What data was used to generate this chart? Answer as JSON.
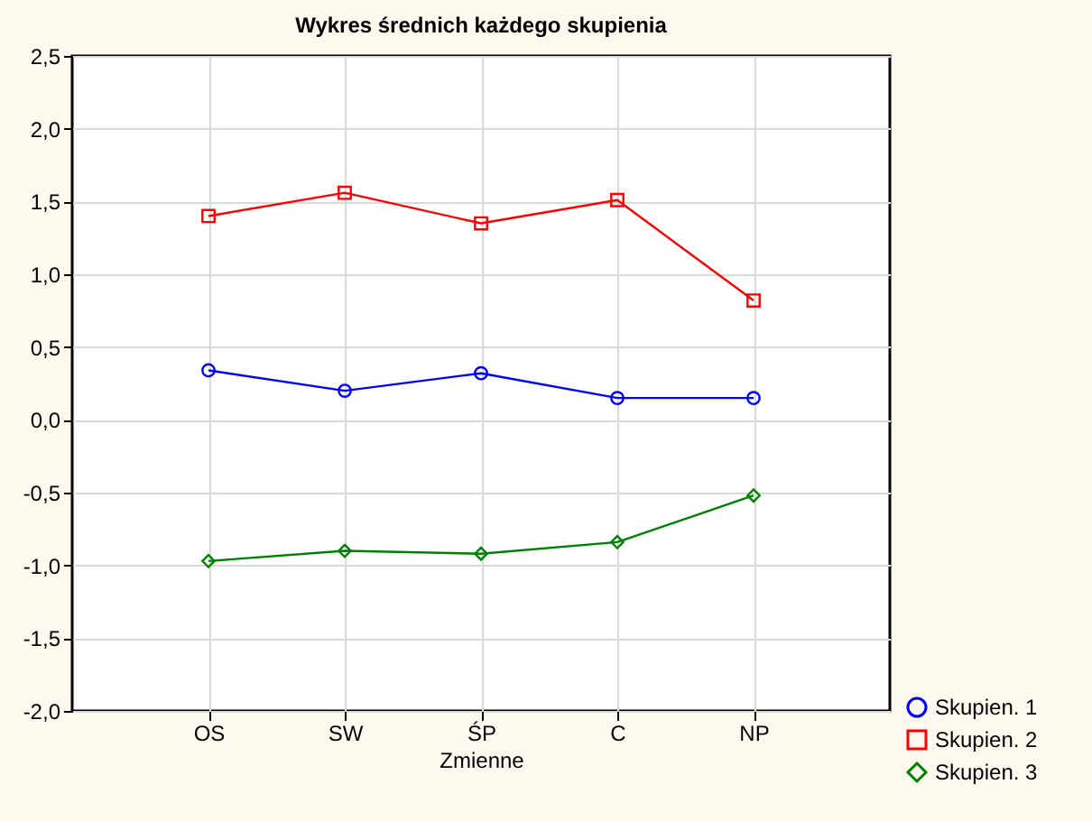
{
  "chart_data": {
    "type": "line",
    "title": "Wykres średnich każdego skupienia",
    "xlabel": "Zmienne",
    "categories": [
      "OS",
      "SW",
      "ŚP",
      "C",
      "NP"
    ],
    "series": [
      {
        "name": "Skupien. 1",
        "color": "#0000ff",
        "marker": "circle",
        "values": [
          0.34,
          0.2,
          0.32,
          0.15,
          0.15
        ]
      },
      {
        "name": "Skupien. 2",
        "color": "#ff0000",
        "marker": "square",
        "values": [
          1.4,
          1.56,
          1.35,
          1.51,
          0.82
        ]
      },
      {
        "name": "Skupien. 3",
        "color": "#008000",
        "marker": "diamond",
        "values": [
          -0.97,
          -0.9,
          -0.92,
          -0.84,
          -0.52
        ]
      }
    ],
    "ylim": [
      -2.0,
      2.5
    ],
    "yticks": [
      {
        "value": -2.0,
        "label": "-2,0"
      },
      {
        "value": -1.5,
        "label": "-1,5"
      },
      {
        "value": -1.0,
        "label": "-1,0"
      },
      {
        "value": -0.5,
        "label": "-0,5"
      },
      {
        "value": 0.0,
        "label": "0,0"
      },
      {
        "value": 0.5,
        "label": "0,5"
      },
      {
        "value": 1.0,
        "label": "1,0"
      },
      {
        "value": 1.5,
        "label": "1,5"
      },
      {
        "value": 2.0,
        "label": "2,0"
      },
      {
        "value": 2.5,
        "label": "2,5"
      }
    ],
    "grid": true,
    "legend": "bottom right",
    "line_style": "solid"
  }
}
